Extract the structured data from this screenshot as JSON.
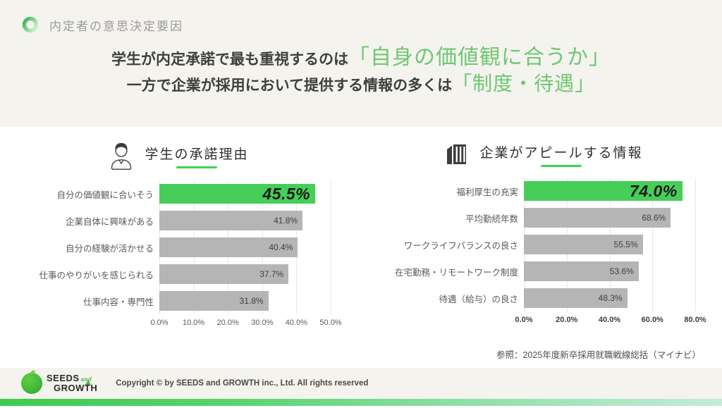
{
  "colors": {
    "background_cream": "#f4f3ee",
    "background_white": "#ffffff",
    "accent_green_bar": "#47ce59",
    "headline_green": "#6ec873",
    "underline_green": "#3fd34f",
    "bar_gray": "#b5b5b5",
    "text_dark": "#3f3f3f",
    "text_gray": "#595959"
  },
  "header": {
    "title": "内定者の意思決定要因",
    "icon": "ring-icon"
  },
  "headline": {
    "line1_prefix": "学生が内定承諾で最も重視するのは",
    "line1_highlight": "「自身の価値観に合うか」",
    "line2_prefix": "一方で企業が採用において提供する情報の多くは",
    "line2_highlight": "「制度・待遇」"
  },
  "chart_data": [
    {
      "type": "bar",
      "orientation": "horizontal",
      "title": "学生の承諾理由",
      "icon": "student-icon",
      "categories": [
        "自分の価値観に合いそう",
        "企業自体に興味がある",
        "自分の経験が活かせる",
        "仕事のやりがいを感じられる",
        "仕事内容・専門性"
      ],
      "values": [
        45.5,
        41.8,
        40.4,
        37.7,
        31.8
      ],
      "value_labels": [
        "45.5%",
        "41.8%",
        "40.4%",
        "37.7%",
        "31.8%"
      ],
      "highlight_index": 0,
      "xlim": [
        0,
        50
      ],
      "x_ticks": [
        "0.0%",
        "10.0%",
        "20.0%",
        "30.0%",
        "40.0%",
        "50.0%"
      ],
      "grid": true,
      "legend": "none"
    },
    {
      "type": "bar",
      "orientation": "horizontal",
      "title": "企業がアピールする情報",
      "icon": "building-icon",
      "categories": [
        "福利厚生の充実",
        "平均勤続年数",
        "ワークライフバランスの良さ",
        "在宅勤務・リモートワーク制度",
        "待遇（給与）の良さ"
      ],
      "values": [
        74.0,
        68.6,
        55.5,
        53.6,
        48.3
      ],
      "value_labels": [
        "74.0%",
        "68.6%",
        "55.5%",
        "53.6%",
        "48.3%"
      ],
      "highlight_index": 0,
      "xlim": [
        0,
        80
      ],
      "x_ticks": [
        "0.0%",
        "20.0%",
        "40.0%",
        "60.0%",
        "80.0%"
      ],
      "grid": true,
      "legend": "none"
    }
  ],
  "source": "参照：2025年度新卒採用就職戦線総括（マイナビ）",
  "footer": {
    "logo_line1": "SEEDS",
    "logo_and": "and",
    "logo_line2": "GROWTH",
    "copyright": "Copyright © by SEEDS and GROWTH inc., Ltd. All rights reserved"
  }
}
